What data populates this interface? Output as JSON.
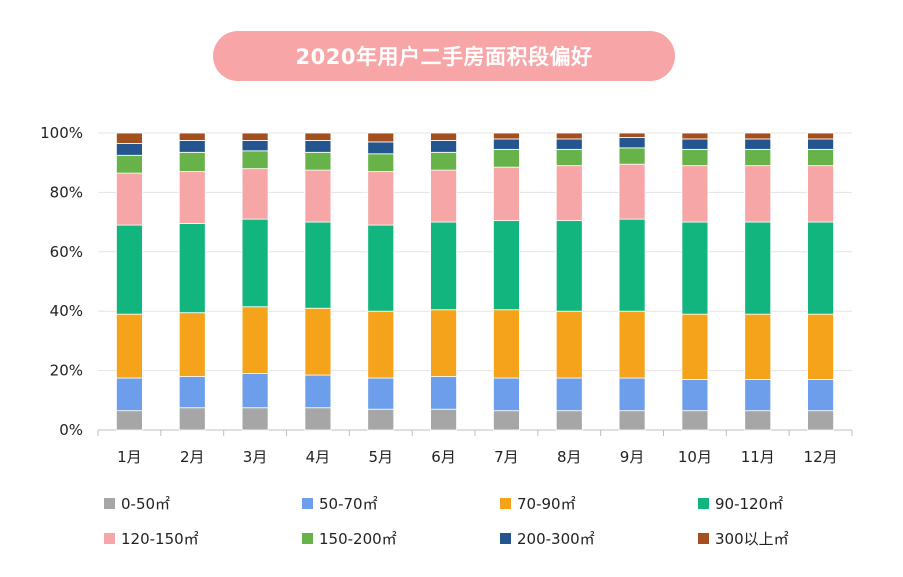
{
  "chart_data": {
    "type": "bar",
    "stacked": "percent",
    "title": "2020年用户二手房面积段偏好",
    "categories": [
      "1月",
      "2月",
      "3月",
      "4月",
      "5月",
      "6月",
      "7月",
      "8月",
      "9月",
      "10月",
      "11月",
      "12月"
    ],
    "ylim": [
      0,
      100
    ],
    "yticks": [
      "0%",
      "20%",
      "40%",
      "60%",
      "80%",
      "100%"
    ],
    "series": [
      {
        "name": "0-50㎡",
        "color": "#a6a6a6",
        "values": [
          6.5,
          7.5,
          7.5,
          7.5,
          7,
          7,
          6.5,
          6.5,
          6.5,
          6.5,
          6.5,
          6.5
        ]
      },
      {
        "name": "50-70㎡",
        "color": "#6d9eeb",
        "values": [
          11,
          10.5,
          11.5,
          11,
          10.5,
          11,
          11,
          11,
          11,
          10.5,
          10.5,
          10.5
        ]
      },
      {
        "name": "70-90㎡",
        "color": "#f5a31a",
        "values": [
          21.5,
          21.5,
          22.5,
          22.5,
          22.5,
          22.5,
          23,
          22.5,
          22.5,
          22,
          22,
          22
        ]
      },
      {
        "name": "90-120㎡",
        "color": "#12b57d",
        "values": [
          30,
          30,
          29.5,
          29,
          29,
          29.5,
          30,
          30.5,
          31,
          31,
          31,
          31
        ]
      },
      {
        "name": "120-150㎡",
        "color": "#f7a6a8",
        "values": [
          17.5,
          17.5,
          17,
          17.5,
          18,
          17.5,
          18,
          18.5,
          18.5,
          19,
          19,
          19
        ]
      },
      {
        "name": "150-200㎡",
        "color": "#67b34a",
        "values": [
          6,
          6.5,
          6,
          6,
          6,
          6,
          6,
          5.5,
          5.5,
          5.5,
          5.5,
          5.5
        ]
      },
      {
        "name": "200-300㎡",
        "color": "#24558f",
        "values": [
          4,
          4,
          3.5,
          4,
          4,
          4,
          3.5,
          3.5,
          3.5,
          3.5,
          3.5,
          3.5
        ]
      },
      {
        "name": "300以上㎡",
        "color": "#a34f1e",
        "values": [
          3.5,
          2.5,
          2.5,
          2.5,
          3,
          2.5,
          2,
          2,
          1.5,
          2,
          2,
          2
        ]
      }
    ],
    "legend_position": "bottom"
  }
}
